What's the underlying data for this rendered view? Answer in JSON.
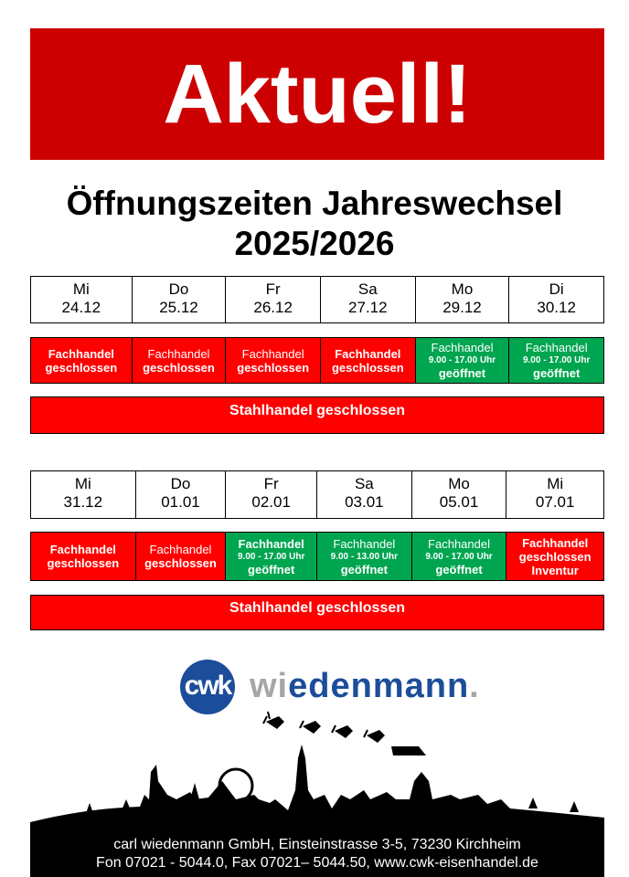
{
  "banner": "Aktuell!",
  "title_line1": "Öffnungszeiten Jahreswechsel",
  "title_line2": "2025/2026",
  "week1": {
    "days": [
      {
        "dow": "Mi",
        "date": "24.12"
      },
      {
        "dow": "Do",
        "date": "25.12"
      },
      {
        "dow": "Fr",
        "date": "26.12"
      },
      {
        "dow": "Sa",
        "date": "27.12"
      },
      {
        "dow": "Mo",
        "date": "29.12"
      },
      {
        "dow": "Di",
        "date": "30.12"
      }
    ],
    "status": [
      {
        "a": "Fachhandel",
        "c": "geschlossen",
        "color": "#ff0000"
      },
      {
        "a": "Fachhandel",
        "c": "geschlossen",
        "color": "#ff0000"
      },
      {
        "a": "Fachhandel",
        "c": "geschlossen",
        "color": "#ff0000"
      },
      {
        "a": "Fachhandel",
        "c": "geschlossen",
        "color": "#ff0000"
      },
      {
        "a": "Fachhandel",
        "t": "9.00 - 17.00 Uhr",
        "c": "geöffnet",
        "color": "#00a550"
      },
      {
        "a": "Fachhandel",
        "t": "9.00 - 17.00 Uhr",
        "c": "geöffnet",
        "color": "#00a550"
      }
    ],
    "stahl": "Stahlhandel geschlossen"
  },
  "week2": {
    "days": [
      {
        "dow": "Mi",
        "date": "31.12"
      },
      {
        "dow": "Do",
        "date": "01.01"
      },
      {
        "dow": "Fr",
        "date": "02.01"
      },
      {
        "dow": "Sa",
        "date": "03.01"
      },
      {
        "dow": "Mo",
        "date": "05.01"
      },
      {
        "dow": "Mi",
        "date": "07.01"
      }
    ],
    "status": [
      {
        "a": "Fachhandel",
        "c": "geschlossen",
        "color": "#ff0000"
      },
      {
        "a": "Fachhandel",
        "c": "geschlossen",
        "color": "#ff0000"
      },
      {
        "a": "Fachhandel",
        "t": "9.00 - 17.00 Uhr",
        "c": "geöffnet",
        "color": "#00a550"
      },
      {
        "a": "Fachhandel",
        "t": "9.00 - 13.00 Uhr",
        "c": "geöffnet",
        "color": "#00a550"
      },
      {
        "a": "Fachhandel",
        "t": "9.00 - 17.00 Uhr",
        "c": "geöffnet",
        "color": "#00a550"
      },
      {
        "a": "Fachhandel",
        "c": "geschlossen",
        "d": "Inventur",
        "color": "#ff0000"
      }
    ],
    "stahl": "Stahlhandel geschlossen"
  },
  "logo": {
    "circle": "cwk",
    "brand_gray": "wi",
    "brand_blue": "edenmann",
    "brand_dot": "."
  },
  "footer": {
    "line1": "carl wiedenmann GmbH,  Einsteinstrasse 3-5,  73230 Kirchheim",
    "line2": "Fon  07021 - 5044.0,  Fax 07021– 5044.50,  www.cwk-eisenhandel.de"
  }
}
